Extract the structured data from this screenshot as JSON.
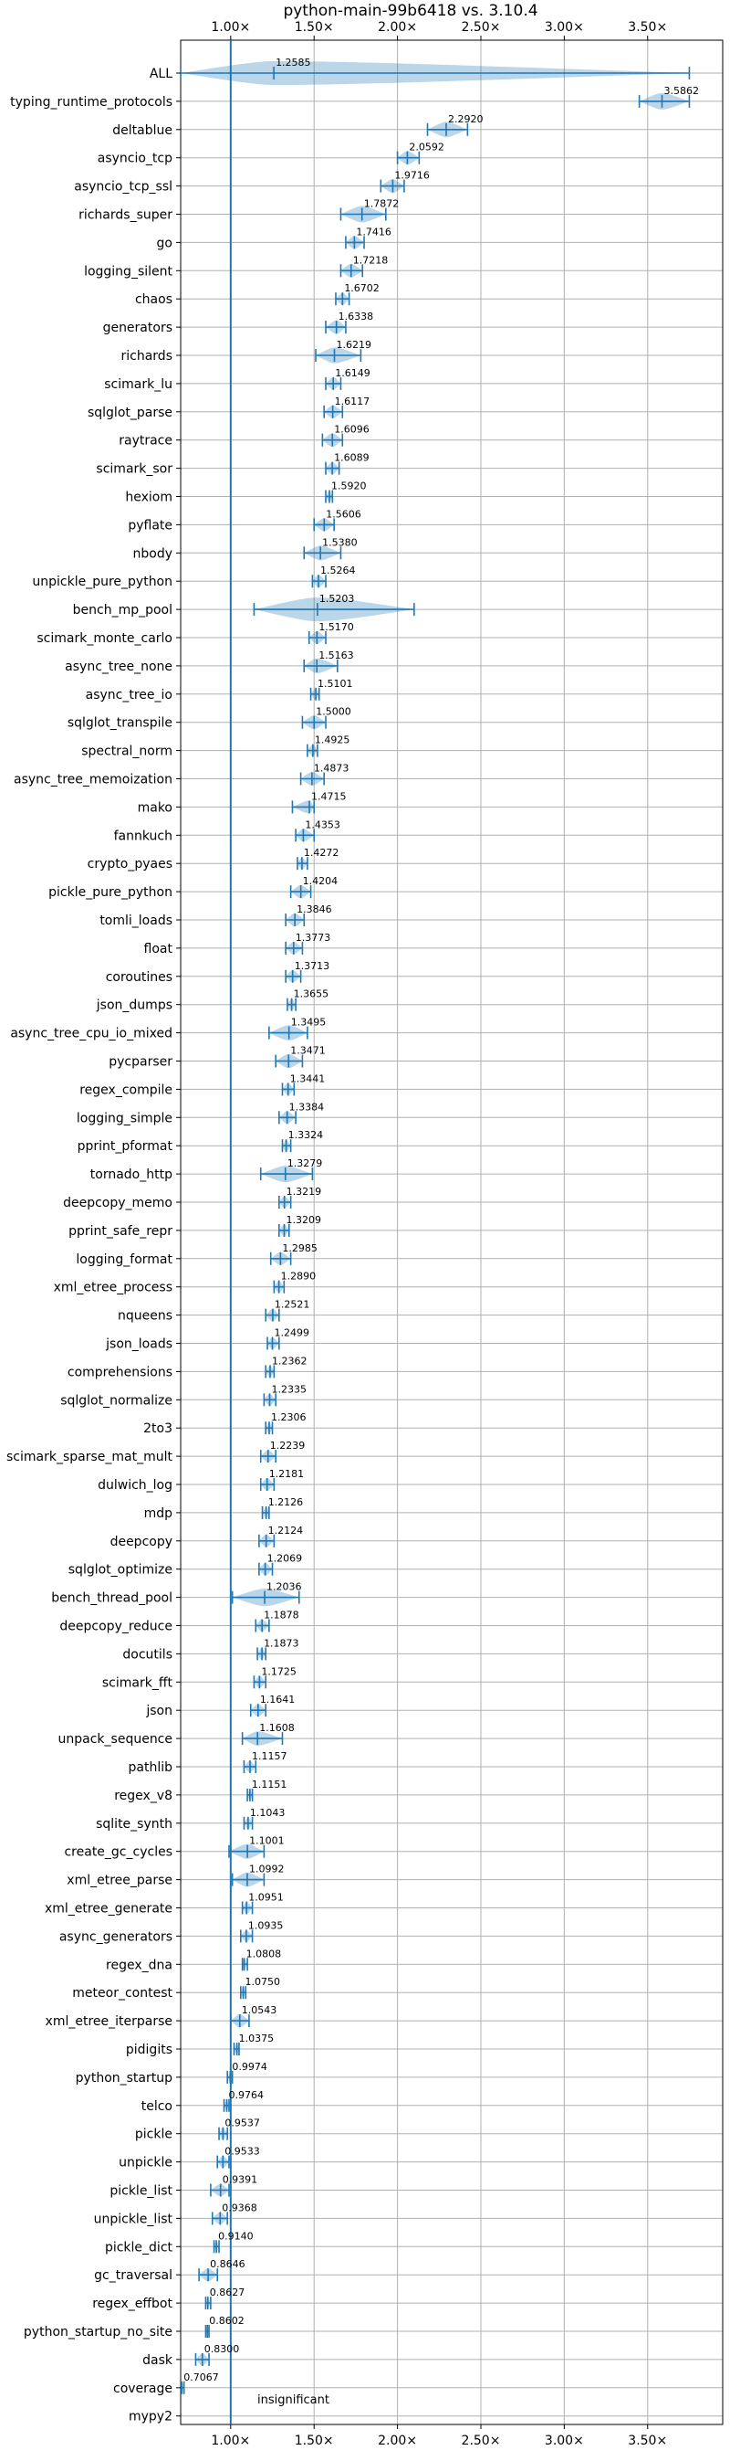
{
  "chart_data": {
    "type": "violin",
    "title": "python-main-99b6418 vs. 3.10.4",
    "xlim": [
      0.7,
      3.95
    ],
    "xticks": [
      {
        "value": 1.0,
        "label": "1.00×"
      },
      {
        "value": 1.5,
        "label": "1.50×"
      },
      {
        "value": 2.0,
        "label": "2.00×"
      },
      {
        "value": 2.5,
        "label": "2.50×"
      },
      {
        "value": 3.0,
        "label": "3.00×"
      },
      {
        "value": 3.5,
        "label": "3.50×"
      }
    ],
    "baseline": 1.0,
    "grid": true,
    "annotation": "insignificant",
    "benchmarks": [
      {
        "name": "ALL",
        "label": "1.2585",
        "value": 1.2585,
        "min": 0.7,
        "max": 3.75,
        "spread": 0.8
      },
      {
        "name": "typing_runtime_protocols",
        "label": "3.5862",
        "value": 3.5862,
        "min": 3.45,
        "max": 3.75,
        "spread": 0.1
      },
      {
        "name": "deltablue",
        "label": "2.2920",
        "value": 2.292,
        "min": 2.18,
        "max": 2.42,
        "spread": 0.08
      },
      {
        "name": "asyncio_tcp",
        "label": "2.0592",
        "value": 2.0592,
        "min": 2.0,
        "max": 2.13,
        "spread": 0.05
      },
      {
        "name": "asyncio_tcp_ssl",
        "label": "1.9716",
        "value": 1.9716,
        "min": 1.9,
        "max": 2.04,
        "spread": 0.05
      },
      {
        "name": "richards_super",
        "label": "1.7872",
        "value": 1.7872,
        "min": 1.66,
        "max": 1.93,
        "spread": 0.1
      },
      {
        "name": "go",
        "label": "1.7416",
        "value": 1.7416,
        "min": 1.69,
        "max": 1.8,
        "spread": 0.04
      },
      {
        "name": "logging_silent",
        "label": "1.7218",
        "value": 1.7218,
        "min": 1.66,
        "max": 1.79,
        "spread": 0.05
      },
      {
        "name": "chaos",
        "label": "1.6702",
        "value": 1.6702,
        "min": 1.63,
        "max": 1.71,
        "spread": 0.03
      },
      {
        "name": "generators",
        "label": "1.6338",
        "value": 1.6338,
        "min": 1.57,
        "max": 1.69,
        "spread": 0.05
      },
      {
        "name": "richards",
        "label": "1.6219",
        "value": 1.6219,
        "min": 1.51,
        "max": 1.78,
        "spread": 0.09
      },
      {
        "name": "scimark_lu",
        "label": "1.6149",
        "value": 1.6149,
        "min": 1.57,
        "max": 1.66,
        "spread": 0.03
      },
      {
        "name": "sqlglot_parse",
        "label": "1.6117",
        "value": 1.6117,
        "min": 1.56,
        "max": 1.67,
        "spread": 0.04
      },
      {
        "name": "raytrace",
        "label": "1.6096",
        "value": 1.6096,
        "min": 1.55,
        "max": 1.67,
        "spread": 0.05
      },
      {
        "name": "scimark_sor",
        "label": "1.6089",
        "value": 1.6089,
        "min": 1.57,
        "max": 1.65,
        "spread": 0.03
      },
      {
        "name": "hexiom",
        "label": "1.5920",
        "value": 1.592,
        "min": 1.57,
        "max": 1.61,
        "spread": 0.02
      },
      {
        "name": "pyflate",
        "label": "1.5606",
        "value": 1.5606,
        "min": 1.5,
        "max": 1.62,
        "spread": 0.04
      },
      {
        "name": "nbody",
        "label": "1.5380",
        "value": 1.538,
        "min": 1.44,
        "max": 1.66,
        "spread": 0.07
      },
      {
        "name": "unpickle_pure_python",
        "label": "1.5264",
        "value": 1.5264,
        "min": 1.49,
        "max": 1.57,
        "spread": 0.03
      },
      {
        "name": "bench_mp_pool",
        "label": "1.5203",
        "value": 1.5203,
        "min": 1.14,
        "max": 2.1,
        "spread": 0.3
      },
      {
        "name": "scimark_monte_carlo",
        "label": "1.5170",
        "value": 1.517,
        "min": 1.47,
        "max": 1.57,
        "spread": 0.04
      },
      {
        "name": "async_tree_none",
        "label": "1.5163",
        "value": 1.5163,
        "min": 1.44,
        "max": 1.64,
        "spread": 0.07
      },
      {
        "name": "async_tree_io",
        "label": "1.5101",
        "value": 1.5101,
        "min": 1.48,
        "max": 1.53,
        "spread": 0.02
      },
      {
        "name": "sqlglot_transpile",
        "label": "1.5000",
        "value": 1.5,
        "min": 1.43,
        "max": 1.57,
        "spread": 0.05
      },
      {
        "name": "spectral_norm",
        "label": "1.4925",
        "value": 1.4925,
        "min": 1.46,
        "max": 1.52,
        "spread": 0.02
      },
      {
        "name": "async_tree_memoization",
        "label": "1.4873",
        "value": 1.4873,
        "min": 1.42,
        "max": 1.56,
        "spread": 0.05
      },
      {
        "name": "mako",
        "label": "1.4715",
        "value": 1.4715,
        "min": 1.37,
        "max": 1.5,
        "spread": 0.04
      },
      {
        "name": "fannkuch",
        "label": "1.4353",
        "value": 1.4353,
        "min": 1.39,
        "max": 1.5,
        "spread": 0.04
      },
      {
        "name": "crypto_pyaes",
        "label": "1.4272",
        "value": 1.4272,
        "min": 1.4,
        "max": 1.46,
        "spread": 0.02
      },
      {
        "name": "pickle_pure_python",
        "label": "1.4204",
        "value": 1.4204,
        "min": 1.36,
        "max": 1.48,
        "spread": 0.04
      },
      {
        "name": "tomli_loads",
        "label": "1.3846",
        "value": 1.3846,
        "min": 1.33,
        "max": 1.44,
        "spread": 0.04
      },
      {
        "name": "float",
        "label": "1.3773",
        "value": 1.3773,
        "min": 1.33,
        "max": 1.43,
        "spread": 0.03
      },
      {
        "name": "coroutines",
        "label": "1.3713",
        "value": 1.3713,
        "min": 1.33,
        "max": 1.42,
        "spread": 0.03
      },
      {
        "name": "json_dumps",
        "label": "1.3655",
        "value": 1.3655,
        "min": 1.34,
        "max": 1.39,
        "spread": 0.02
      },
      {
        "name": "async_tree_cpu_io_mixed",
        "label": "1.3495",
        "value": 1.3495,
        "min": 1.23,
        "max": 1.46,
        "spread": 0.08
      },
      {
        "name": "pycparser",
        "label": "1.3471",
        "value": 1.3471,
        "min": 1.27,
        "max": 1.43,
        "spread": 0.06
      },
      {
        "name": "regex_compile",
        "label": "1.3441",
        "value": 1.3441,
        "min": 1.31,
        "max": 1.38,
        "spread": 0.02
      },
      {
        "name": "logging_simple",
        "label": "1.3384",
        "value": 1.3384,
        "min": 1.29,
        "max": 1.39,
        "spread": 0.03
      },
      {
        "name": "pprint_pformat",
        "label": "1.3324",
        "value": 1.3324,
        "min": 1.31,
        "max": 1.36,
        "spread": 0.02
      },
      {
        "name": "tornado_http",
        "label": "1.3279",
        "value": 1.3279,
        "min": 1.18,
        "max": 1.49,
        "spread": 0.1
      },
      {
        "name": "deepcopy_memo",
        "label": "1.3219",
        "value": 1.3219,
        "min": 1.29,
        "max": 1.36,
        "spread": 0.02
      },
      {
        "name": "pprint_safe_repr",
        "label": "1.3209",
        "value": 1.3209,
        "min": 1.29,
        "max": 1.35,
        "spread": 0.02
      },
      {
        "name": "logging_format",
        "label": "1.2985",
        "value": 1.2985,
        "min": 1.24,
        "max": 1.36,
        "spread": 0.04
      },
      {
        "name": "xml_etree_process",
        "label": "1.2890",
        "value": 1.289,
        "min": 1.26,
        "max": 1.32,
        "spread": 0.02
      },
      {
        "name": "nqueens",
        "label": "1.2521",
        "value": 1.2521,
        "min": 1.21,
        "max": 1.29,
        "spread": 0.03
      },
      {
        "name": "json_loads",
        "label": "1.2499",
        "value": 1.2499,
        "min": 1.22,
        "max": 1.29,
        "spread": 0.02
      },
      {
        "name": "comprehensions",
        "label": "1.2362",
        "value": 1.2362,
        "min": 1.21,
        "max": 1.26,
        "spread": 0.02
      },
      {
        "name": "sqlglot_normalize",
        "label": "1.2335",
        "value": 1.2335,
        "min": 1.2,
        "max": 1.27,
        "spread": 0.02
      },
      {
        "name": "2to3",
        "label": "1.2306",
        "value": 1.2306,
        "min": 1.21,
        "max": 1.25,
        "spread": 0.015
      },
      {
        "name": "scimark_sparse_mat_mult",
        "label": "1.2239",
        "value": 1.2239,
        "min": 1.18,
        "max": 1.27,
        "spread": 0.03
      },
      {
        "name": "dulwich_log",
        "label": "1.2181",
        "value": 1.2181,
        "min": 1.18,
        "max": 1.26,
        "spread": 0.03
      },
      {
        "name": "mdp",
        "label": "1.2126",
        "value": 1.2126,
        "min": 1.19,
        "max": 1.23,
        "spread": 0.015
      },
      {
        "name": "deepcopy",
        "label": "1.2124",
        "value": 1.2124,
        "min": 1.17,
        "max": 1.26,
        "spread": 0.03
      },
      {
        "name": "sqlglot_optimize",
        "label": "1.2069",
        "value": 1.2069,
        "min": 1.17,
        "max": 1.25,
        "spread": 0.03
      },
      {
        "name": "bench_thread_pool",
        "label": "1.2036",
        "value": 1.2036,
        "min": 1.01,
        "max": 1.41,
        "spread": 0.12
      },
      {
        "name": "deepcopy_reduce",
        "label": "1.1878",
        "value": 1.1878,
        "min": 1.15,
        "max": 1.23,
        "spread": 0.03
      },
      {
        "name": "docutils",
        "label": "1.1873",
        "value": 1.1873,
        "min": 1.16,
        "max": 1.21,
        "spread": 0.02
      },
      {
        "name": "scimark_fft",
        "label": "1.1725",
        "value": 1.1725,
        "min": 1.14,
        "max": 1.21,
        "spread": 0.02
      },
      {
        "name": "json",
        "label": "1.1641",
        "value": 1.1641,
        "min": 1.12,
        "max": 1.21,
        "spread": 0.03
      },
      {
        "name": "unpack_sequence",
        "label": "1.1608",
        "value": 1.1608,
        "min": 1.07,
        "max": 1.31,
        "spread": 0.06
      },
      {
        "name": "pathlib",
        "label": "1.1157",
        "value": 1.1157,
        "min": 1.08,
        "max": 1.15,
        "spread": 0.02
      },
      {
        "name": "regex_v8",
        "label": "1.1151",
        "value": 1.1151,
        "min": 1.1,
        "max": 1.13,
        "spread": 0.01
      },
      {
        "name": "sqlite_synth",
        "label": "1.1043",
        "value": 1.1043,
        "min": 1.08,
        "max": 1.13,
        "spread": 0.015
      },
      {
        "name": "create_gc_cycles",
        "label": "1.1001",
        "value": 1.1001,
        "min": 0.99,
        "max": 1.2,
        "spread": 0.07
      },
      {
        "name": "xml_etree_parse",
        "label": "1.0992",
        "value": 1.0992,
        "min": 1.01,
        "max": 1.2,
        "spread": 0.06
      },
      {
        "name": "xml_etree_generate",
        "label": "1.0951",
        "value": 1.0951,
        "min": 1.07,
        "max": 1.13,
        "spread": 0.02
      },
      {
        "name": "async_generators",
        "label": "1.0935",
        "value": 1.0935,
        "min": 1.06,
        "max": 1.13,
        "spread": 0.02
      },
      {
        "name": "regex_dna",
        "label": "1.0808",
        "value": 1.0808,
        "min": 1.07,
        "max": 1.1,
        "spread": 0.01
      },
      {
        "name": "meteor_contest",
        "label": "1.0750",
        "value": 1.075,
        "min": 1.06,
        "max": 1.09,
        "spread": 0.01
      },
      {
        "name": "xml_etree_iterparse",
        "label": "1.0543",
        "value": 1.0543,
        "min": 1.0,
        "max": 1.11,
        "spread": 0.04
      },
      {
        "name": "pidigits",
        "label": "1.0375",
        "value": 1.0375,
        "min": 1.02,
        "max": 1.05,
        "spread": 0.01
      },
      {
        "name": "python_startup",
        "label": "0.9974",
        "value": 0.9974,
        "min": 0.98,
        "max": 1.01,
        "spread": 0.01
      },
      {
        "name": "telco",
        "label": "0.9764",
        "value": 0.9764,
        "min": 0.96,
        "max": 0.99,
        "spread": 0.01
      },
      {
        "name": "pickle",
        "label": "0.9537",
        "value": 0.9537,
        "min": 0.93,
        "max": 0.98,
        "spread": 0.015
      },
      {
        "name": "unpickle",
        "label": "0.9533",
        "value": 0.9533,
        "min": 0.92,
        "max": 0.99,
        "spread": 0.02
      },
      {
        "name": "pickle_list",
        "label": "0.9391",
        "value": 0.9391,
        "min": 0.88,
        "max": 0.99,
        "spread": 0.03
      },
      {
        "name": "unpickle_list",
        "label": "0.9368",
        "value": 0.9368,
        "min": 0.89,
        "max": 0.98,
        "spread": 0.03
      },
      {
        "name": "pickle_dict",
        "label": "0.9140",
        "value": 0.914,
        "min": 0.9,
        "max": 0.93,
        "spread": 0.01
      },
      {
        "name": "gc_traversal",
        "label": "0.8646",
        "value": 0.8646,
        "min": 0.81,
        "max": 0.92,
        "spread": 0.04
      },
      {
        "name": "regex_effbot",
        "label": "0.8627",
        "value": 0.8627,
        "min": 0.85,
        "max": 0.88,
        "spread": 0.01
      },
      {
        "name": "python_startup_no_site",
        "label": "0.8602",
        "value": 0.8602,
        "min": 0.85,
        "max": 0.87,
        "spread": 0.008
      },
      {
        "name": "dask",
        "label": "0.8300",
        "value": 0.83,
        "min": 0.79,
        "max": 0.87,
        "spread": 0.03
      },
      {
        "name": "coverage",
        "label": "0.7067",
        "value": 0.7067,
        "min": 0.7,
        "max": 0.72,
        "spread": 0.008
      },
      {
        "name": "mypy2",
        "label": "",
        "value": null,
        "min": null,
        "max": null,
        "spread": 0
      }
    ]
  }
}
